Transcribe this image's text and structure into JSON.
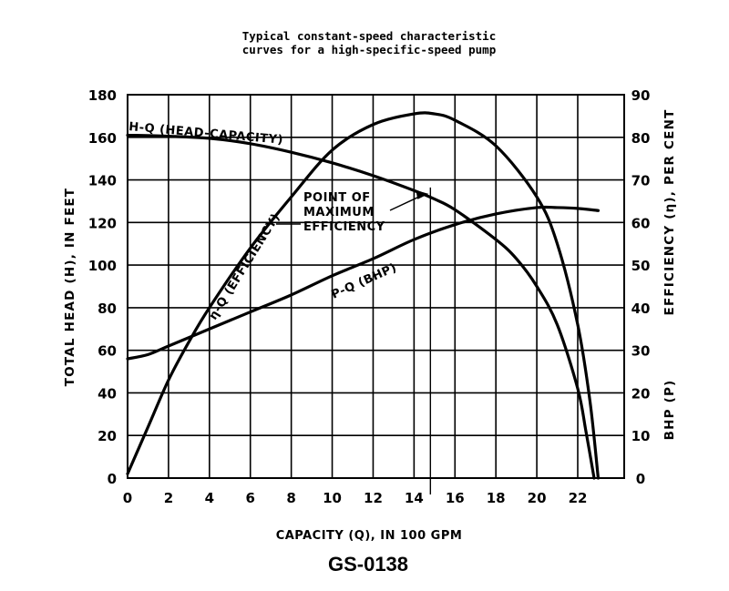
{
  "chart_data": {
    "type": "line",
    "title_lines": [
      "Typical constant-speed characteristic",
      "curves for a high-specific-speed pump"
    ],
    "xlabel": "CAPACITY (Q), IN 100 GPM",
    "ylabel_left": "TOTAL HEAD (H), IN FEET",
    "ylabel_right_efficiency": "EFFICIENCY (η), PER CENT",
    "ylabel_right_bhp": "BHP (P)",
    "footer": "GS-0138",
    "xlim": [
      0,
      24
    ],
    "ylim_left": [
      0,
      180
    ],
    "ylim_right": [
      0,
      90
    ],
    "grid": true,
    "x_ticks": [
      "0",
      "2",
      "4",
      "6",
      "8",
      "10",
      "12",
      "14",
      "16",
      "18",
      "20",
      "22"
    ],
    "y_ticks_left": [
      "0",
      "20",
      "40",
      "60",
      "80",
      "100",
      "120",
      "140",
      "160",
      "180"
    ],
    "y_ticks_right": [
      "0",
      "10",
      "20",
      "30",
      "40",
      "50",
      "60",
      "70",
      "80",
      "90"
    ],
    "series": [
      {
        "name": "H-Q (HEAD-CAPACITY)",
        "axis": "left",
        "x": [
          0,
          2,
          4,
          6,
          8,
          10,
          12,
          14,
          15,
          16,
          18,
          19,
          20,
          21,
          22,
          22.4,
          22.8
        ],
        "y": [
          161,
          160.5,
          159.5,
          157,
          153,
          148,
          142,
          135,
          131,
          126,
          112,
          103,
          90,
          72,
          42,
          22,
          0
        ]
      },
      {
        "name": "η-Q (EFFICIENCY)",
        "axis": "right",
        "x": [
          0,
          1,
          2,
          3,
          4,
          6,
          8,
          10,
          12,
          14,
          15,
          16,
          18,
          20,
          21,
          22,
          22.6,
          23
        ],
        "y": [
          1,
          12,
          23,
          32,
          40,
          54,
          66,
          77,
          83,
          85.5,
          85.5,
          84,
          78,
          66,
          55,
          36,
          18,
          0
        ]
      },
      {
        "name": "P-Q (BHP)",
        "axis": "right",
        "x": [
          0,
          1,
          2,
          4,
          6,
          8,
          10,
          12,
          14,
          16,
          18,
          20,
          21,
          22,
          23
        ],
        "y": [
          28,
          29,
          31,
          35,
          39,
          43,
          47.5,
          51.5,
          56,
          59.5,
          62,
          63.5,
          63.5,
          63.3,
          62.8
        ]
      }
    ],
    "annotations": [
      {
        "text_lines": [
          "POINT OF",
          "MAXIMUM",
          "EFFICIENCY"
        ],
        "points_to_x": 14.8,
        "points_to_y_left": 133
      }
    ],
    "curve_labels": {
      "hq": "H-Q (HEAD-CAPACITY)",
      "eta": "η-Q (EFFICIENCY)",
      "pq": "P-Q (BHP)"
    }
  }
}
